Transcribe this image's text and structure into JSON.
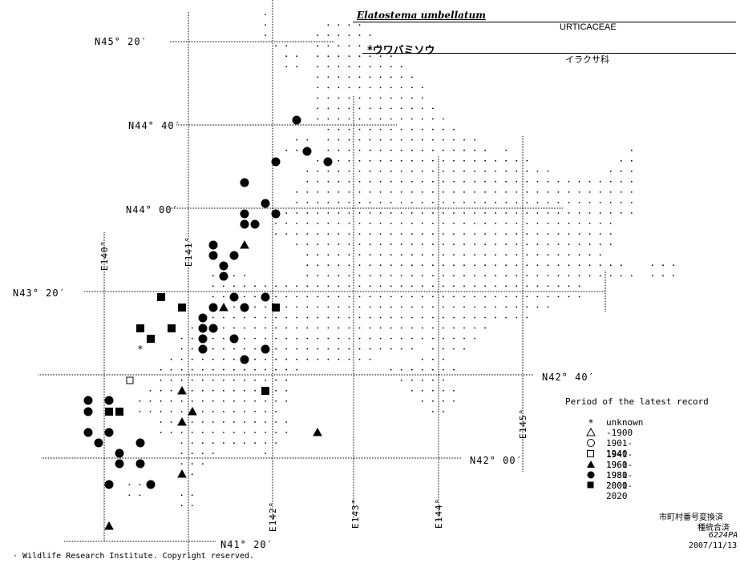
{
  "header": {
    "scientific_name": "Elatostema umbellatum",
    "family_latin": "URTICACEAE",
    "japanese_name": "*ウワバミソウ",
    "family_japanese": "イラクサ科"
  },
  "latitude_labels": [
    "N45° 20′",
    "N44° 40′",
    "N44° 00′",
    "N43° 20′",
    "N42° 40′",
    "N42° 00′",
    "N41° 20′"
  ],
  "longitude_labels": [
    "E140°",
    "E141°",
    "E142°",
    "E143°",
    "E144°",
    "E145°"
  ],
  "legend": {
    "title": "Period of the latest record",
    "items": [
      {
        "symbol": "asterisk",
        "label": "unknown"
      },
      {
        "symbol": "open-triangle",
        "label": "-1900"
      },
      {
        "symbol": "open-circle",
        "label": "1901-1940"
      },
      {
        "symbol": "open-square",
        "label": "1941-1960"
      },
      {
        "symbol": "filled-triangle",
        "label": "1961-1980"
      },
      {
        "symbol": "filled-circle",
        "label": "1981-2000"
      },
      {
        "symbol": "filled-square",
        "label": "2001-2020"
      }
    ]
  },
  "footer": {
    "status_line1": "市町村番号変換済",
    "status_line2": "種統合済",
    "code": "6224PA",
    "date": "2007/11/13",
    "copyright": "· Wildlife Research Institute. Copyright reserved."
  },
  "records": {
    "filled_circle": 42,
    "filled_square": 11,
    "filled_triangle": 8,
    "open_square": 1,
    "asterisk": 1
  }
}
